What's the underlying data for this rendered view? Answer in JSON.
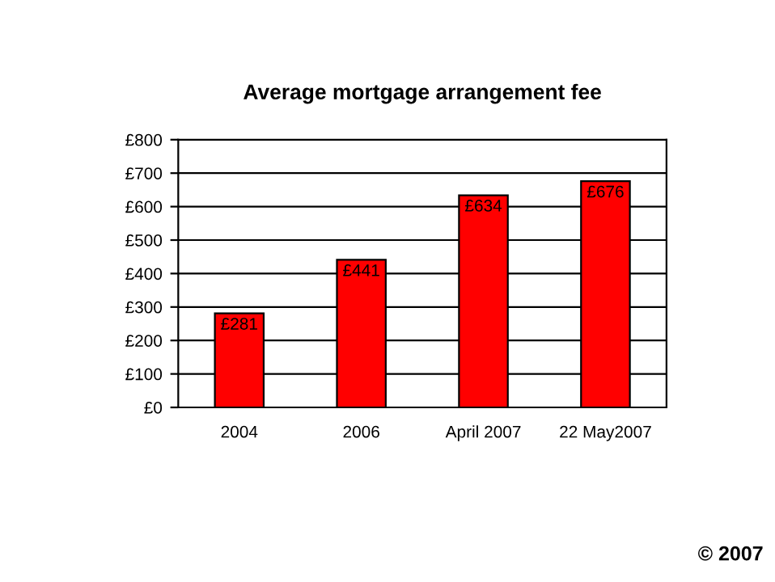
{
  "chart_data": {
    "type": "bar",
    "title": "Average mortgage arrangement fee",
    "categories": [
      "2004",
      "2006",
      "April 2007",
      "22 May2007"
    ],
    "values": [
      281,
      441,
      634,
      676
    ],
    "value_labels": [
      "£281",
      "£441",
      "£634",
      "£676"
    ],
    "color": "#ff0000",
    "ylim": [
      0,
      800
    ],
    "yticks": [
      {
        "value": 0,
        "label": "£0"
      },
      {
        "value": 100,
        "label": "£100"
      },
      {
        "value": 200,
        "label": "£200"
      },
      {
        "value": 300,
        "label": "£300"
      },
      {
        "value": 400,
        "label": "£400"
      },
      {
        "value": 500,
        "label": "£500"
      },
      {
        "value": 600,
        "label": "£600"
      },
      {
        "value": 700,
        "label": "£700"
      },
      {
        "value": 800,
        "label": "£800"
      }
    ],
    "grid": "y",
    "annotations": [
      "© 2007"
    ]
  }
}
